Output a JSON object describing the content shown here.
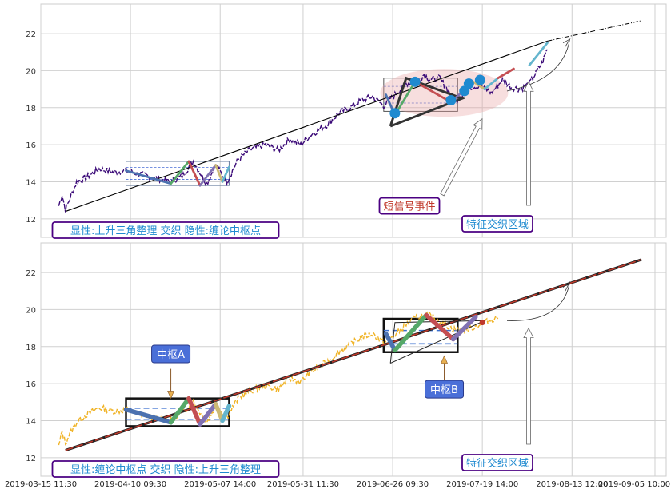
{
  "chart_data": [
    {
      "type": "line",
      "panel": "top",
      "ylim": [
        11,
        23.6
      ],
      "yticks": [
        12,
        14,
        16,
        18,
        20,
        22
      ],
      "grid": true,
      "annotations": {
        "legend_box": "显性:上升三角整理 交织 隐性:缠论中枢点",
        "signal_label": "短信号事件",
        "feature_label": "特征交织区域"
      },
      "price_anchors": {
        "t": [
          0,
          1.5,
          3,
          5,
          8,
          12,
          18,
          25,
          30,
          40,
          50,
          55,
          60,
          66,
          70,
          75,
          80,
          85,
          92,
          98,
          103,
          108,
          112,
          116,
          120,
          125,
          130,
          135,
          140,
          145,
          150,
          155,
          160,
          163,
          166,
          170,
          175,
          178,
          183,
          188,
          193,
          198,
          202,
          206,
          210,
          213,
          216,
          218
        ],
        "y": [
          12.7,
          13.3,
          12.5,
          13.1,
          14.0,
          14.2,
          14.7,
          14.5,
          14.6,
          14.3,
          14.0,
          14.3,
          15.1,
          13.9,
          14.9,
          14.0,
          15.2,
          15.7,
          16.0,
          15.7,
          16.3,
          16.0,
          16.5,
          16.8,
          17.1,
          17.7,
          18.0,
          18.4,
          18.6,
          18.1,
          18.7,
          19.3,
          19.4,
          19.8,
          19.5,
          19.6,
          18.7,
          18.5,
          19.1,
          19.2,
          18.8,
          19.5,
          19.1,
          19.0,
          19.3,
          19.9,
          20.5,
          21.2
        ]
      },
      "trend_line": {
        "t": [
          3,
          218
        ],
        "y": [
          12.4,
          21.6
        ]
      },
      "extension_line": {
        "t": [
          218,
          260
        ],
        "y": [
          21.6,
          22.7
        ]
      },
      "zigzag_segments": [
        {
          "t": [
            30,
            50
          ],
          "y": [
            14.6,
            13.9
          ],
          "color": "#4c72b0"
        },
        {
          "t": [
            50,
            58
          ],
          "y": [
            13.9,
            15.1
          ],
          "color": "#55a868"
        },
        {
          "t": [
            58,
            63
          ],
          "y": [
            15.1,
            13.8
          ],
          "color": "#c44e52"
        },
        {
          "t": [
            63,
            70
          ],
          "y": [
            13.8,
            14.9
          ],
          "color": "#8172b2"
        },
        {
          "t": [
            70,
            73
          ],
          "y": [
            14.9,
            14.0
          ],
          "color": "#ccb974"
        },
        {
          "t": [
            73,
            76
          ],
          "y": [
            14.0,
            14.8
          ],
          "color": "#64b5cd"
        },
        {
          "t": [
            146,
            150
          ],
          "y": [
            18.7,
            17.6
          ],
          "color": "#4c72b0"
        },
        {
          "t": [
            150,
            159
          ],
          "y": [
            17.6,
            19.4
          ],
          "color": "#55a868"
        },
        {
          "t": [
            159,
            175
          ],
          "y": [
            19.4,
            18.3
          ],
          "color": "#c44e52"
        },
        {
          "t": [
            175,
            185
          ],
          "y": [
            18.3,
            19.4
          ],
          "color": "#8172b2"
        },
        {
          "t": [
            185,
            190
          ],
          "y": [
            19.4,
            19.0
          ],
          "color": "#ccb974"
        },
        {
          "t": [
            190,
            196
          ],
          "y": [
            19.0,
            19.6
          ],
          "color": "#64b5cd"
        },
        {
          "t": [
            196,
            203
          ],
          "y": [
            19.6,
            20.1
          ],
          "color": "#c44e52"
        },
        {
          "t": [
            210,
            218
          ],
          "y": [
            20.3,
            21.5
          ],
          "color": "#64b5cd"
        }
      ],
      "pivot_points": {
        "t": [
          150,
          159,
          175,
          181,
          183,
          188
        ],
        "y": [
          17.7,
          19.4,
          18.4,
          18.9,
          19.3,
          19.5
        ]
      },
      "zhongshu_boxes": [
        {
          "t": [
            30,
            76
          ],
          "y": [
            13.8,
            15.1
          ]
        },
        {
          "t": [
            145,
            178
          ],
          "y": [
            17.8,
            19.6
          ]
        }
      ],
      "triangle": {
        "t": [
          148,
          155,
          180,
          148
        ],
        "y": [
          17.0,
          19.6,
          18.5,
          17.0
        ]
      }
    },
    {
      "type": "line",
      "panel": "bottom",
      "ylim": [
        11,
        23.6
      ],
      "yticks": [
        12,
        14,
        16,
        18,
        20,
        22
      ],
      "grid": true,
      "x_tick_labels": [
        "2019-03-15 11:30",
        "2019-04-10 09:30",
        "2019-05-07 14:00",
        "2019-05-31 11:30",
        "2019-06-26 09:30",
        "2019-07-19 14:00",
        "2019-08-13 12:00",
        "2019-09-05 10:00"
      ],
      "annotations": {
        "legend_box": "显性:缠论中枢点 交织 隐性:上升三角整理",
        "zhongshu_a": "中枢A",
        "zhongshu_b": "中枢B",
        "feature_label": "特征交织区域"
      },
      "price_anchors": {
        "t": [
          0,
          1.5,
          3,
          5,
          8,
          12,
          18,
          25,
          30,
          40,
          50,
          55,
          60,
          66,
          70,
          75,
          80,
          85,
          92,
          98,
          103,
          108,
          112,
          116,
          120,
          125,
          130,
          135,
          140,
          145,
          150,
          155,
          160,
          165,
          170,
          175,
          180,
          186,
          192,
          196
        ],
        "y": [
          12.6,
          13.4,
          12.8,
          13.3,
          13.9,
          14.3,
          14.7,
          14.5,
          14.6,
          14.2,
          14.0,
          14.4,
          15.0,
          13.9,
          14.8,
          14.2,
          15.2,
          15.6,
          15.9,
          15.7,
          16.3,
          16.1,
          16.6,
          16.9,
          17.2,
          17.7,
          18.1,
          18.5,
          18.7,
          18.2,
          18.6,
          19.2,
          19.6,
          19.7,
          19.4,
          19.0,
          18.8,
          19.1,
          19.4,
          19.6
        ]
      },
      "trend_line": {
        "t": [
          3,
          260
        ],
        "y": [
          12.4,
          22.7
        ]
      },
      "zigzag_segments": [
        {
          "t": [
            30,
            50
          ],
          "y": [
            14.6,
            13.9
          ],
          "color": "#4c72b0"
        },
        {
          "t": [
            50,
            58
          ],
          "y": [
            13.9,
            15.2
          ],
          "color": "#55a868"
        },
        {
          "t": [
            58,
            63
          ],
          "y": [
            15.2,
            13.8
          ],
          "color": "#c44e52"
        },
        {
          "t": [
            63,
            70
          ],
          "y": [
            13.8,
            14.9
          ],
          "color": "#8172b2"
        },
        {
          "t": [
            70,
            73
          ],
          "y": [
            14.9,
            14.0
          ],
          "color": "#ccb974"
        },
        {
          "t": [
            73,
            76
          ],
          "y": [
            14.0,
            14.8
          ],
          "color": "#64b5cd"
        },
        {
          "t": [
            146,
            150
          ],
          "y": [
            18.7,
            17.8
          ],
          "color": "#4c72b0"
        },
        {
          "t": [
            150,
            164
          ],
          "y": [
            17.8,
            19.7
          ],
          "color": "#55a868"
        },
        {
          "t": [
            164,
            176
          ],
          "y": [
            19.7,
            18.4
          ],
          "color": "#c44e52"
        },
        {
          "t": [
            176,
            186
          ],
          "y": [
            18.4,
            19.6
          ],
          "color": "#8172b2"
        }
      ],
      "pivot_points": {
        "t": [
          189
        ],
        "y": [
          19.3
        ]
      },
      "zhongshu_boxes": [
        {
          "t": [
            30,
            76
          ],
          "y": [
            13.7,
            15.2
          ]
        },
        {
          "t": [
            145,
            178
          ],
          "y": [
            17.7,
            19.5
          ]
        }
      ],
      "triangle": {
        "t": [
          148,
          150,
          190,
          148
        ],
        "y": [
          17.1,
          19.3,
          19.4,
          17.1
        ]
      }
    }
  ],
  "colors": {
    "price_top": "#3b0a78",
    "price_bottom": "#f0b428",
    "trend_bottom": "#c0392b",
    "pivot": "#1f8ad0",
    "label_border": "#4b0082",
    "label_text_blue": "#1f8ad0",
    "label_text_red": "#c0392b",
    "zhongshu_fill": "#4a6fd8"
  }
}
